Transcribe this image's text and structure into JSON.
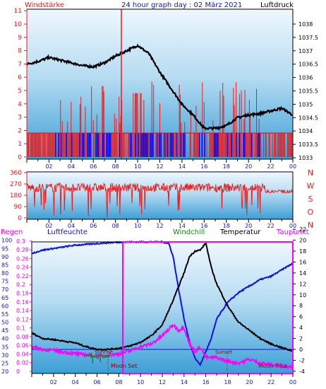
{
  "header": {
    "left": "Windstärke",
    "title": "24 hour graph day : 02 März 2021",
    "right": "Luftdruck"
  },
  "colors": {
    "red": "#ee1c1c",
    "blue": "#1010ee",
    "black": "#000000",
    "green": "#138a13",
    "magenta": "#ff00ff",
    "plot_top": "#eaf5fc",
    "plot_bottom": "#4aa8da"
  },
  "chart_data": [
    {
      "type": "line",
      "x_ticks": [
        "02",
        "04",
        "06",
        "08",
        "10",
        "12",
        "14",
        "16",
        "18",
        "20",
        "22",
        "00"
      ],
      "left_axis_label": "Windstärke",
      "left_ticks": [
        "0",
        "1",
        "2",
        "3",
        "4",
        "5",
        "6",
        "7",
        "8",
        "9",
        "10",
        "11"
      ],
      "right_axis_label": "Luftdruck",
      "right_ticks": [
        "1033",
        "1033.5",
        "1034",
        "1034.5",
        "1035",
        "1035.5",
        "1036",
        "1036.5",
        "1037",
        "1037.5",
        "1038"
      ],
      "marker_hour": 8.5,
      "series": [
        {
          "name": "Luftdruck",
          "color": "black",
          "axis": "right",
          "points": [
            [
              0,
              1036.5
            ],
            [
              1,
              1036.6
            ],
            [
              2,
              1036.75
            ],
            [
              3,
              1036.65
            ],
            [
              4,
              1036.55
            ],
            [
              5,
              1036.45
            ],
            [
              6,
              1036.4
            ],
            [
              7,
              1036.55
            ],
            [
              8,
              1036.8
            ],
            [
              9,
              1037.0
            ],
            [
              10,
              1037.2
            ],
            [
              11,
              1036.9
            ],
            [
              12,
              1036.2
            ],
            [
              13,
              1035.6
            ],
            [
              14,
              1035.0
            ],
            [
              15,
              1034.6
            ],
            [
              16,
              1034.1
            ],
            [
              17,
              1034.1
            ],
            [
              18,
              1034.2
            ],
            [
              19,
              1034.5
            ],
            [
              20,
              1034.6
            ],
            [
              21,
              1034.65
            ],
            [
              22,
              1034.75
            ],
            [
              23,
              1034.85
            ],
            [
              24,
              1034.6
            ]
          ]
        }
      ]
    },
    {
      "type": "line",
      "x_ticks": [
        "02",
        "04",
        "06",
        "08",
        "10",
        "12",
        "14",
        "16",
        "18",
        "20",
        "22",
        "00"
      ],
      "left_ticks": [
        "0",
        "90",
        "180",
        "270",
        "360"
      ],
      "right_labels": [
        "N",
        "W",
        "S",
        "O",
        "N"
      ],
      "series": [
        {
          "name": "Windrichtung",
          "color": "red",
          "range": [
            0,
            360
          ],
          "typical": 240
        }
      ]
    },
    {
      "type": "line",
      "x_ticks": [
        "02",
        "04",
        "06",
        "08",
        "10",
        "12",
        "14",
        "16",
        "18",
        "20",
        "22",
        "00"
      ],
      "legend": [
        "Regen",
        "Luftfeuchte",
        "Windchill",
        "Temperatur",
        "Taupunkt"
      ],
      "regen_ticks": [
        "0",
        "0.02",
        "0.04",
        "0.06",
        "0.08",
        "0.1",
        "0.12",
        "0.14",
        "0.16",
        "0.18",
        "0.2",
        "0.22",
        "0.24",
        "0.26",
        "0.28",
        "0.3"
      ],
      "feuchte_ticks": [
        "20",
        "25",
        "30",
        "35",
        "40",
        "45",
        "50",
        "55",
        "60",
        "65",
        "70",
        "75",
        "80",
        "85",
        "90",
        "95",
        "100"
      ],
      "temp_ticks": [
        "-4",
        "-2",
        "0",
        "2",
        "4",
        "6",
        "8",
        "10",
        "12",
        "14",
        "16",
        "18",
        "20",
        "22"
      ],
      "annotations": [
        "Moon Set",
        "Moon Rise",
        "Sunrise",
        "Sunset"
      ],
      "series": [
        {
          "name": "Luftfeuchte",
          "color": "blue",
          "points": [
            [
              0,
              92
            ],
            [
              1,
              94
            ],
            [
              2,
              95
            ],
            [
              3,
              96
            ],
            [
              4,
              97
            ],
            [
              5,
              97.5
            ],
            [
              6,
              98
            ],
            [
              7,
              98.5
            ],
            [
              8,
              98.8
            ],
            [
              9,
              99
            ],
            [
              10,
              99
            ],
            [
              11,
              99
            ],
            [
              12,
              99
            ],
            [
              12.6,
              98
            ],
            [
              13,
              90
            ],
            [
              13.5,
              70
            ],
            [
              14,
              52
            ],
            [
              14.5,
              38
            ],
            [
              15,
              28
            ],
            [
              15.5,
              24
            ],
            [
              16,
              32
            ],
            [
              16.5,
              40
            ],
            [
              17,
              52
            ],
            [
              18,
              62
            ],
            [
              19,
              68
            ],
            [
              20,
              72
            ],
            [
              21,
              76
            ],
            [
              22,
              78
            ],
            [
              23,
              82
            ],
            [
              24,
              86
            ]
          ]
        },
        {
          "name": "Temperatur",
          "color": "black",
          "points": [
            [
              0,
              3
            ],
            [
              1,
              2
            ],
            [
              2,
              1.8
            ],
            [
              3,
              1.5
            ],
            [
              4,
              1.2
            ],
            [
              5,
              0.5
            ],
            [
              6,
              0
            ],
            [
              7,
              0
            ],
            [
              8,
              0.2
            ],
            [
              9,
              0.6
            ],
            [
              10,
              1.3
            ],
            [
              11,
              2.5
            ],
            [
              12,
              4.5
            ],
            [
              13,
              9
            ],
            [
              14,
              14
            ],
            [
              14.5,
              17
            ],
            [
              15,
              18
            ],
            [
              15.5,
              18.2
            ],
            [
              16,
              19.5
            ],
            [
              16.5,
              15
            ],
            [
              17,
              12
            ],
            [
              18,
              8
            ],
            [
              19,
              5
            ],
            [
              20,
              3.5
            ],
            [
              21,
              2
            ],
            [
              22,
              1
            ],
            [
              23,
              0.3
            ],
            [
              24,
              -0.3
            ]
          ]
        },
        {
          "name": "Taupunkt",
          "color": "magenta",
          "points": [
            [
              0,
              0.5
            ],
            [
              1,
              0
            ],
            [
              2,
              -0.2
            ],
            [
              3,
              -0.5
            ],
            [
              4,
              -0.8
            ],
            [
              5,
              -1
            ],
            [
              6,
              -1.2
            ],
            [
              7,
              -1.1
            ],
            [
              8,
              -0.8
            ],
            [
              9,
              -0.3
            ],
            [
              10,
              0.5
            ],
            [
              11,
              1
            ],
            [
              12,
              2.5
            ],
            [
              13,
              4.5
            ],
            [
              13.5,
              3.5
            ],
            [
              14,
              4
            ],
            [
              14.5,
              1
            ],
            [
              15,
              -0.5
            ],
            [
              15.5,
              0.5
            ],
            [
              16,
              -1.5
            ],
            [
              17,
              -1.5
            ],
            [
              18,
              -2.2
            ],
            [
              19,
              -2.5
            ],
            [
              20,
              -1.8
            ],
            [
              21,
              -2.5
            ],
            [
              22,
              -2.8
            ],
            [
              23,
              -3
            ],
            [
              24,
              -3.2
            ]
          ]
        },
        {
          "name": "Windchill",
          "color": "green",
          "points": [
            [
              4.8,
              -0.8
            ],
            [
              5.3,
              -1.1
            ],
            [
              6.2,
              -1.3
            ],
            [
              7.2,
              -1.2
            ]
          ]
        }
      ]
    }
  ]
}
